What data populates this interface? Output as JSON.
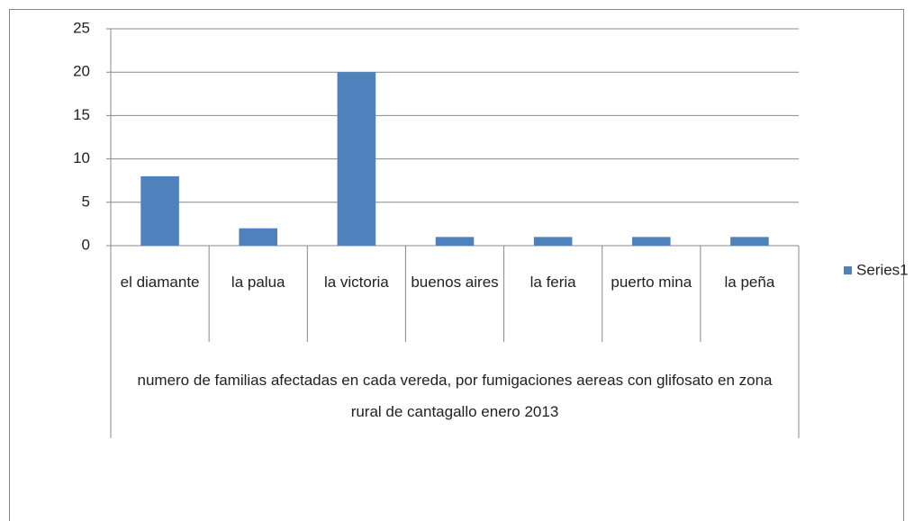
{
  "chart_data": {
    "type": "bar",
    "categories": [
      "el diamante",
      "la palua",
      "la victoria",
      "buenos aires",
      "la feria",
      "puerto mina",
      "la peña"
    ],
    "x_label": "numero de familias afectadas en cada vereda, por fumigaciones aereas con glifosato en zona rural de cantagallo enero 2013",
    "series": [
      {
        "name": "Series1",
        "color": "#4f81bd",
        "values": [
          8,
          2,
          20,
          1,
          1,
          1,
          1
        ]
      }
    ],
    "ylim": [
      0,
      25
    ],
    "yticks": [
      0,
      5,
      10,
      15,
      20,
      25
    ],
    "grid": true,
    "legend": "right"
  }
}
